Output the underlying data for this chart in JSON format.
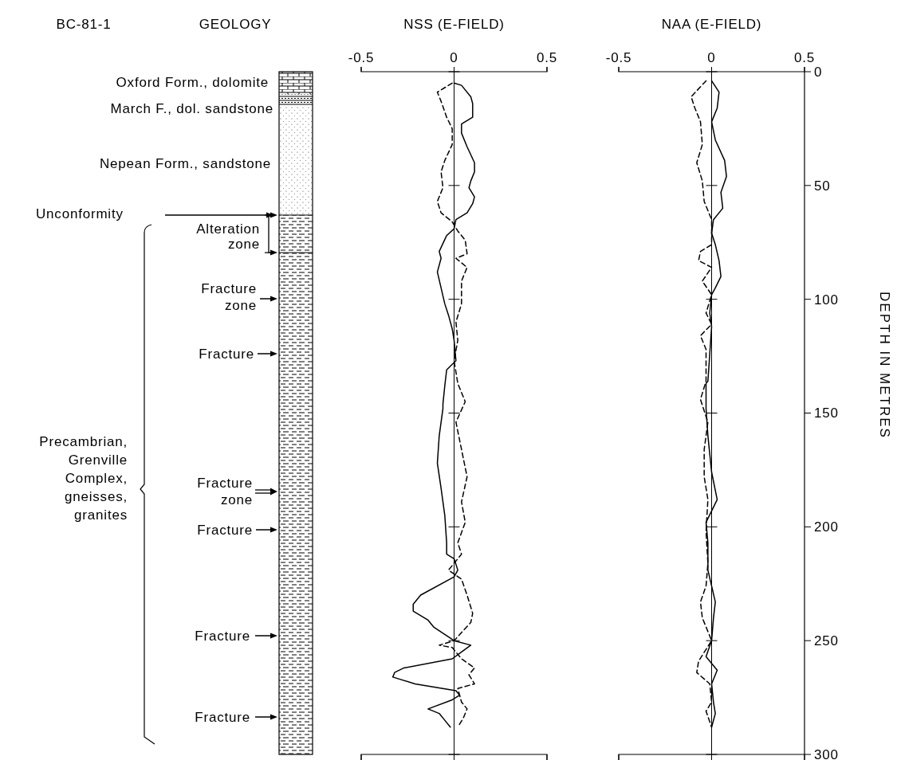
{
  "chart_data": [
    {
      "type": "other",
      "title": "GEOLOGY",
      "annotations": [
        "BC-81-1",
        "Oxford Form., dolomite",
        "March F., dol. sandstone",
        "Nepean Form., sandstone",
        "Unconformity",
        "Alteration zone",
        "Fracture zone",
        "Fracture",
        "Precambrian, Grenville Complex, gneisses, granites",
        "Fracture zone",
        "Fracture",
        "Fracture",
        "Fracture"
      ]
    },
    {
      "type": "line",
      "title": "NSS (E-FIELD)",
      "xlim": [
        -0.5,
        0.5
      ],
      "xticks": [
        -0.5,
        0,
        0.5
      ],
      "ylim": [
        300,
        0
      ],
      "yticks": [
        0,
        50,
        100,
        150,
        200,
        250,
        300
      ],
      "tick_labels": "x",
      "ref_lines": [
        {
          "axis": "x",
          "value": 0
        }
      ],
      "series": [
        {
          "color": "#000000",
          "line_style": "solid",
          "x": [
            0,
            0.04,
            0.09,
            0.1,
            0.1,
            0.04,
            0.04,
            0.07,
            0.11,
            0.11,
            0.09,
            0.08,
            0.11,
            0.1,
            0.07,
            0.01,
            0,
            -0.04,
            -0.08,
            -0.07,
            -0.09,
            -0.07,
            -0.05,
            -0.03,
            -0.01,
            0,
            0.01,
            -0.04,
            -0.05,
            -0.06,
            -0.06,
            -0.08,
            -0.09,
            -0.07,
            -0.05,
            -0.04,
            -0.04,
            0,
            0.02,
            0,
            -0.18,
            -0.22,
            -0.22,
            -0.14,
            -0.11,
            0,
            0.09,
            0.04,
            -0.01,
            -0.27,
            -0.32,
            -0.33,
            -0.21,
            0.01,
            0.03,
            -0.01,
            -0.14,
            -0.08,
            -0.05,
            -0.02
          ],
          "values": [
            5,
            6,
            11,
            14,
            20,
            23,
            27,
            33,
            40,
            44,
            48,
            51,
            55,
            58,
            62,
            65,
            69,
            72,
            79,
            82,
            88,
            95,
            102,
            107,
            113,
            118,
            127,
            131,
            138,
            146,
            148,
            160,
            172,
            183,
            195,
            207,
            212,
            214,
            219,
            222,
            230,
            234,
            237,
            241,
            244,
            250,
            252,
            255,
            258,
            262,
            264,
            266,
            269,
            272,
            274,
            276,
            280,
            282,
            285,
            288
          ]
        },
        {
          "color": "#000000",
          "line_style": "dashed",
          "x": [
            -0.01,
            -0.09,
            -0.07,
            -0.04,
            -0.01,
            -0.01,
            -0.05,
            -0.07,
            -0.06,
            -0.09,
            -0.07,
            -0.01,
            0.02,
            0.06,
            0.07,
            0.01,
            0.07,
            0.04,
            0.04,
            0.01,
            0.02,
            0,
            0.02,
            0.06,
            0.01,
            0.04,
            0.07,
            0.04,
            0.06,
            0.02,
            0.04,
            -0.03,
            0.04,
            0.07,
            0.1,
            0.09,
            0,
            -0.08,
            -0.01,
            0.04,
            0.11,
            0.08,
            0.11,
            0.02,
            0.04,
            0.07,
            0.05,
            0.02
          ],
          "values": [
            5,
            9,
            13,
            20,
            25,
            32,
            39,
            44,
            51,
            57,
            62,
            66,
            70,
            74,
            80,
            82,
            86,
            92,
            102,
            110,
            118,
            127,
            137,
            145,
            154,
            166,
            178,
            189,
            198,
            207,
            212,
            219,
            223,
            230,
            238,
            242,
            250,
            252,
            253,
            258,
            262,
            265,
            269,
            271,
            277,
            280,
            284,
            288
          ]
        }
      ]
    },
    {
      "type": "line",
      "title": "NAA (E-FIELD)",
      "ylabel": "DEPTH IN METRES",
      "xlim": [
        -0.5,
        0.5
      ],
      "xticks": [
        -0.5,
        0,
        0.5
      ],
      "ylim": [
        300,
        0
      ],
      "yticks": [
        0,
        50,
        100,
        150,
        200,
        250,
        300
      ],
      "ref_lines": [
        {
          "axis": "x",
          "value": 0
        }
      ],
      "series": [
        {
          "color": "#000000",
          "line_style": "solid",
          "x": [
            0,
            0.04,
            0.03,
            0,
            0.02,
            0.07,
            0.08,
            0.05,
            0.06,
            0.01,
            0,
            0.02,
            0.04,
            0.05,
            0.02,
            0,
            -0.01,
            0,
            -0.01,
            -0.02,
            -0.03,
            -0.03,
            -0.02,
            0,
            0.03,
            0,
            -0.03,
            -0.02,
            -0.02,
            0,
            0.02,
            0.01,
            0,
            -0.03,
            0.03,
            0,
            0.01,
            0.02,
            0
          ],
          "values": [
            4,
            9,
            16,
            22,
            30,
            39,
            46,
            53,
            60,
            65,
            71,
            76,
            83,
            90,
            95,
            98,
            106,
            112,
            124,
            136,
            137,
            148,
            160,
            176,
            188,
            193,
            198,
            207,
            219,
            226,
            233,
            240,
            250,
            257,
            263,
            269,
            277,
            282,
            288
          ]
        },
        {
          "color": "#000000",
          "line_style": "dashed",
          "x": [
            -0.03,
            -0.11,
            -0.09,
            -0.06,
            -0.05,
            -0.08,
            -0.05,
            -0.04,
            0,
            0,
            -0.06,
            -0.07,
            0,
            -0.05,
            0,
            -0.03,
            0,
            -0.06,
            -0.03,
            -0.03,
            -0.03,
            -0.06,
            -0.02,
            -0.04,
            -0.04,
            -0.02,
            -0.03,
            -0.02,
            -0.03,
            -0.06,
            -0.05,
            0,
            -0.07,
            -0.08,
            -0.01,
            0,
            -0.03,
            0
          ],
          "values": [
            4,
            11,
            16,
            22,
            32,
            40,
            48,
            57,
            65,
            76,
            79,
            83,
            86,
            92,
            98,
            106,
            111,
            116,
            122,
            130,
            136,
            144,
            154,
            166,
            178,
            188,
            202,
            216,
            226,
            233,
            240,
            250,
            259,
            264,
            269,
            277,
            281,
            288
          ]
        }
      ]
    }
  ]
}
